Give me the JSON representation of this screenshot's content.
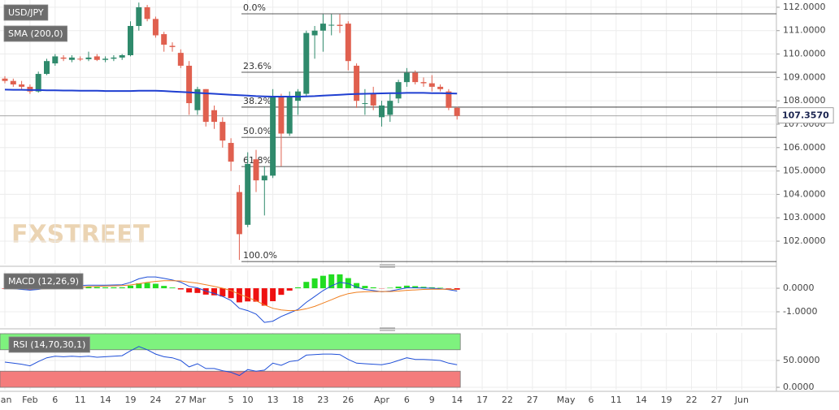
{
  "watermark": "FXSTREET",
  "chart_data": [
    {
      "type": "candlestick",
      "title": "USD/JPY",
      "categories": [
        "Jan",
        null,
        null,
        "Feb",
        null,
        null,
        "6",
        null,
        null,
        "11",
        null,
        null,
        "14",
        null,
        null,
        "19",
        null,
        null,
        "24",
        null,
        null,
        "27",
        null,
        "Mar",
        null,
        null,
        null,
        "5",
        null,
        "10",
        null,
        null,
        "13",
        null,
        null,
        "18",
        null,
        null,
        "23",
        null,
        null,
        "26",
        null,
        null,
        null,
        "Apr",
        null,
        null,
        "6",
        null,
        null,
        "9",
        null,
        null,
        "14",
        null,
        null,
        "17",
        null,
        null,
        "22",
        null,
        null,
        "27",
        null,
        null,
        null,
        "May",
        null,
        null,
        "6",
        null,
        null,
        "11",
        null,
        null,
        "14",
        null,
        null,
        "19",
        null,
        null,
        "22",
        null,
        null,
        "27",
        null,
        null,
        "Jun",
        null,
        null,
        null
      ],
      "ohlc": [
        [
          108.95,
          109.05,
          108.75,
          108.85
        ],
        [
          108.85,
          108.95,
          108.6,
          108.7
        ],
        [
          108.7,
          108.85,
          108.5,
          108.6
        ],
        [
          108.6,
          108.7,
          108.3,
          108.4
        ],
        [
          108.4,
          109.25,
          108.35,
          109.15
        ],
        [
          109.15,
          109.8,
          109.1,
          109.7
        ],
        [
          109.6,
          110.0,
          109.5,
          109.9
        ],
        [
          109.85,
          109.95,
          109.7,
          109.8
        ],
        [
          109.75,
          109.95,
          109.65,
          109.85
        ],
        [
          109.8,
          109.9,
          109.7,
          109.78
        ],
        [
          109.78,
          110.1,
          109.7,
          109.85
        ],
        [
          109.9,
          110.0,
          109.7,
          109.75
        ],
        [
          109.75,
          109.9,
          109.65,
          109.8
        ],
        [
          109.8,
          109.95,
          109.7,
          109.85
        ],
        [
          109.85,
          110.0,
          109.75,
          109.95
        ],
        [
          109.95,
          111.4,
          109.9,
          111.2
        ],
        [
          111.2,
          112.2,
          111.0,
          112.0
        ],
        [
          112.0,
          112.1,
          111.4,
          111.5
        ],
        [
          111.5,
          111.6,
          110.7,
          110.8
        ],
        [
          110.85,
          110.95,
          110.1,
          110.4
        ],
        [
          110.35,
          110.5,
          110.1,
          110.3
        ],
        [
          110.05,
          110.2,
          109.4,
          109.5
        ],
        [
          109.5,
          109.7,
          107.4,
          107.9
        ],
        [
          107.6,
          108.6,
          107.4,
          108.5
        ],
        [
          108.5,
          108.5,
          106.9,
          107.1
        ],
        [
          107.6,
          107.8,
          106.8,
          107.1
        ],
        [
          107.1,
          107.3,
          106.0,
          106.3
        ],
        [
          106.2,
          106.4,
          105.0,
          105.4
        ],
        [
          104.1,
          104.4,
          101.2,
          102.3
        ],
        [
          102.7,
          105.8,
          102.6,
          105.3
        ],
        [
          105.5,
          105.9,
          104.1,
          104.6
        ],
        [
          104.6,
          105.2,
          103.1,
          104.8
        ],
        [
          104.8,
          108.5,
          104.7,
          108.2
        ],
        [
          108.2,
          108.3,
          105.2,
          106.6
        ],
        [
          106.6,
          108.4,
          106.5,
          108.2
        ],
        [
          108.0,
          108.5,
          107.4,
          108.4
        ],
        [
          108.3,
          111.0,
          108.2,
          110.9
        ],
        [
          110.8,
          111.2,
          109.8,
          111.0
        ],
        [
          111.0,
          111.7,
          110.1,
          111.3
        ],
        [
          111.25,
          111.7,
          110.8,
          111.25
        ],
        [
          111.25,
          111.7,
          110.9,
          111.2
        ],
        [
          111.3,
          111.4,
          109.3,
          109.7
        ],
        [
          109.5,
          109.6,
          107.7,
          108.0
        ],
        [
          107.9,
          108.5,
          107.4,
          107.9
        ],
        [
          108.3,
          108.6,
          107.6,
          107.8
        ],
        [
          107.3,
          108.0,
          106.9,
          107.8
        ],
        [
          107.4,
          108.3,
          107.1,
          108.0
        ],
        [
          108.1,
          108.9,
          107.9,
          108.8
        ],
        [
          108.8,
          109.4,
          108.6,
          109.2
        ],
        [
          109.2,
          109.3,
          108.7,
          108.8
        ],
        [
          108.8,
          109.0,
          108.6,
          108.75
        ],
        [
          108.75,
          109.1,
          108.4,
          108.6
        ],
        [
          108.6,
          108.7,
          108.4,
          108.5
        ],
        [
          108.4,
          108.5,
          107.6,
          107.7
        ],
        [
          107.7,
          107.75,
          107.2,
          107.357
        ],
        null,
        null,
        null,
        null,
        null,
        null,
        null,
        null,
        null,
        null,
        null,
        null,
        null,
        null,
        null,
        null,
        null,
        null,
        null,
        null,
        null,
        null,
        null,
        null,
        null,
        null,
        null,
        null,
        null,
        null,
        null,
        null,
        null,
        null,
        null
      ],
      "up_color": "#2f8a6c",
      "down_color": "#e0604f",
      "overlays": [
        {
          "name": "SMA (200,0)",
          "color": "#1f3fd1",
          "values": [
            108.48,
            108.47,
            108.47,
            108.46,
            108.46,
            108.45,
            108.45,
            108.44,
            108.44,
            108.43,
            108.43,
            108.43,
            108.42,
            108.42,
            108.42,
            108.42,
            108.43,
            108.43,
            108.43,
            108.42,
            108.4,
            108.38,
            108.36,
            108.34,
            108.32,
            108.3,
            108.28,
            108.26,
            108.24,
            108.22,
            108.2,
            108.19,
            108.18,
            108.18,
            108.18,
            108.18,
            108.19,
            108.2,
            108.22,
            108.24,
            108.26,
            108.28,
            108.29,
            108.3,
            108.31,
            108.32,
            108.33,
            108.33,
            108.34,
            108.34,
            108.34,
            108.33,
            108.33,
            108.32,
            108.31,
            null,
            null,
            null,
            null,
            null,
            null,
            null,
            null,
            null,
            null,
            null,
            null,
            null,
            null,
            null,
            null,
            null,
            null,
            null,
            null,
            null,
            null,
            null,
            null,
            null,
            null,
            null,
            null,
            null,
            null,
            null,
            null,
            null,
            null,
            null
          ]
        }
      ],
      "fib_levels": [
        {
          "label": "0.0%",
          "value": 111.72
        },
        {
          "label": "23.6%",
          "value": 109.22
        },
        {
          "label": "38.2%",
          "value": 107.73
        },
        {
          "label": "50.0%",
          "value": 106.44
        },
        {
          "label": "61.8%",
          "value": 105.19
        },
        {
          "label": "100.0%",
          "value": 101.13
        }
      ],
      "last_price": {
        "value": 107.357,
        "label": "107.3570"
      },
      "ylim": [
        101.03,
        112.31
      ],
      "yticks": [
        {
          "value": 102,
          "label": "102.0000"
        },
        {
          "value": 103,
          "label": "103.0000"
        },
        {
          "value": 104,
          "label": "104.0000"
        },
        {
          "value": 105,
          "label": "105.0000"
        },
        {
          "value": 106,
          "label": "106.0000"
        },
        {
          "value": 107,
          "label": "107.0000"
        },
        {
          "value": 108,
          "label": "108.0000"
        },
        {
          "value": 109,
          "label": "109.0000"
        },
        {
          "value": 110,
          "label": "110.0000"
        },
        {
          "value": 111,
          "label": "111.0000"
        },
        {
          "value": 112,
          "label": "112.0000"
        }
      ],
      "grid": true
    },
    {
      "type": "macd",
      "title": "MACD (12,26,9)",
      "macd": {
        "color": "#1f4fd8",
        "values": [
          0.0,
          -0.02,
          -0.05,
          -0.08,
          -0.05,
          0.0,
          0.05,
          0.08,
          0.1,
          0.12,
          0.13,
          0.13,
          0.13,
          0.14,
          0.15,
          0.25,
          0.4,
          0.48,
          0.48,
          0.42,
          0.35,
          0.26,
          0.08,
          0.02,
          -0.12,
          -0.22,
          -0.35,
          -0.52,
          -0.85,
          -0.95,
          -1.1,
          -1.45,
          -1.4,
          -1.2,
          -1.05,
          -0.9,
          -0.6,
          -0.35,
          -0.1,
          0.1,
          0.25,
          0.2,
          0.05,
          -0.05,
          -0.1,
          -0.15,
          -0.12,
          -0.05,
          0.02,
          0.02,
          0.01,
          0.0,
          -0.02,
          -0.06,
          -0.12,
          null,
          null,
          null,
          null,
          null,
          null,
          null,
          null,
          null,
          null,
          null,
          null,
          null,
          null,
          null,
          null,
          null,
          null,
          null,
          null,
          null,
          null,
          null,
          null,
          null,
          null,
          null,
          null,
          null,
          null,
          null,
          null,
          null,
          null,
          null
        ]
      },
      "signal": {
        "color": "#f07f1f",
        "values": [
          0.02,
          0.01,
          0.0,
          -0.02,
          -0.03,
          -0.02,
          -0.01,
          0.01,
          0.03,
          0.05,
          0.07,
          0.08,
          0.09,
          0.1,
          0.11,
          0.14,
          0.19,
          0.25,
          0.29,
          0.32,
          0.32,
          0.31,
          0.26,
          0.22,
          0.15,
          0.08,
          0.0,
          -0.1,
          -0.25,
          -0.39,
          -0.53,
          -0.71,
          -0.85,
          -0.92,
          -0.95,
          -0.94,
          -0.87,
          -0.77,
          -0.63,
          -0.49,
          -0.34,
          -0.23,
          -0.17,
          -0.15,
          -0.14,
          -0.14,
          -0.14,
          -0.12,
          -0.09,
          -0.07,
          -0.05,
          -0.04,
          -0.04,
          -0.04,
          -0.06,
          null,
          null,
          null,
          null,
          null,
          null,
          null,
          null,
          null,
          null,
          null,
          null,
          null,
          null,
          null,
          null,
          null,
          null,
          null,
          null,
          null,
          null,
          null,
          null,
          null,
          null,
          null,
          null,
          null,
          null,
          null,
          null,
          null,
          null,
          null
        ]
      },
      "histogram": {
        "up_color": "#22dd22",
        "down_color": "#ee1111",
        "values": [
          -0.02,
          -0.03,
          -0.05,
          -0.06,
          -0.02,
          0.02,
          0.06,
          0.07,
          0.07,
          0.07,
          0.06,
          0.05,
          0.04,
          0.04,
          0.04,
          0.11,
          0.21,
          0.23,
          0.19,
          0.1,
          0.03,
          -0.05,
          -0.18,
          -0.2,
          -0.27,
          -0.3,
          -0.35,
          -0.42,
          -0.6,
          -0.56,
          -0.57,
          -0.74,
          -0.55,
          -0.28,
          -0.1,
          0.04,
          0.27,
          0.42,
          0.53,
          0.59,
          0.59,
          0.43,
          0.22,
          0.1,
          0.04,
          -0.01,
          0.02,
          0.07,
          0.11,
          0.09,
          0.06,
          0.04,
          0.02,
          -0.02,
          -0.06,
          null,
          null,
          null,
          null,
          null,
          null,
          null,
          null,
          null,
          null,
          null,
          null,
          null,
          null,
          null,
          null,
          null,
          null,
          null,
          null,
          null,
          null,
          null,
          null,
          null,
          null,
          null,
          null,
          null,
          null,
          null,
          null,
          null,
          null,
          null
        ]
      },
      "ylim": [
        -1.62,
        0.76
      ],
      "yticks": [
        {
          "value": 0,
          "label": "0.0000"
        },
        {
          "value": -1,
          "label": "-1.0000"
        }
      ]
    },
    {
      "type": "rsi",
      "title": "RSI (14,70,30,1)",
      "color": "#1f4fd8",
      "values": [
        47,
        45,
        43,
        40,
        48,
        55,
        58,
        57,
        58,
        57,
        58,
        56,
        57,
        58,
        59,
        68,
        76,
        70,
        62,
        57,
        55,
        50,
        38,
        44,
        35,
        35,
        31,
        28,
        22,
        33,
        30,
        32,
        45,
        41,
        48,
        50,
        60,
        61,
        62,
        62,
        61,
        52,
        45,
        44,
        43,
        42,
        45,
        50,
        55,
        52,
        52,
        51,
        50,
        45,
        42,
        null,
        null,
        null,
        null,
        null,
        null,
        null,
        null,
        null,
        null,
        null,
        null,
        null,
        null,
        null,
        null,
        null,
        null,
        null,
        null,
        null,
        null,
        null,
        null,
        null,
        null,
        null,
        null,
        null,
        null,
        null,
        null,
        null,
        null,
        null
      ],
      "bands": [
        {
          "from": 70,
          "to": 100,
          "color": "#7ef27e"
        },
        {
          "from": 0,
          "to": 30,
          "color": "#f47c7c"
        }
      ],
      "ylim": [
        -4.5,
        101.5
      ],
      "yticks": [
        {
          "value": 50,
          "label": "50.0000"
        },
        {
          "value": 0,
          "label": "0.0000"
        }
      ]
    }
  ]
}
